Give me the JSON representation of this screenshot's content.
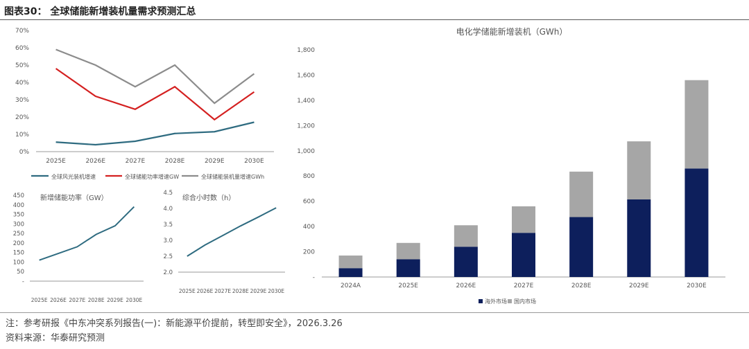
{
  "figure_title": "图表30：  全球储能新增装机量需求预测汇总",
  "note_text": "注：参考研报《中东冲突系列报告(一)：新能源平价提前，转型即安全》，2026.3.26",
  "source_text": "资料来源：华泰研究预测",
  "colors": {
    "wind_solar": "#2e6b80",
    "storage_gw": "#d42020",
    "storage_gwh": "#8c8c8c",
    "overseas": "#0d1f5c",
    "domestic": "#a6a6a6",
    "line_blue": "#2e6b80"
  },
  "chart_data": [
    {
      "type": "line",
      "title": "",
      "categories": [
        "2025E",
        "2026E",
        "2027E",
        "2028E",
        "2029E",
        "2030E"
      ],
      "y_ticks": [
        "70%",
        "60%",
        "50%",
        "40%",
        "30%",
        "20%",
        "10%",
        "0%"
      ],
      "ylim": [
        0,
        70
      ],
      "series": [
        {
          "name": "全球风光装机增速",
          "values": [
            5.5,
            4.0,
            6.0,
            10.5,
            11.5,
            17.0
          ]
        },
        {
          "name": "全球储能功率增速GW",
          "values": [
            48,
            32,
            24.5,
            37.5,
            18.5,
            34.5
          ]
        },
        {
          "name": "全球储能装机量增速GWh",
          "values": [
            59,
            50,
            37.5,
            50,
            28,
            45
          ]
        }
      ]
    },
    {
      "type": "line",
      "title": "新增储能功率（GW）",
      "categories": [
        "2025E",
        "2026E",
        "2027E",
        "2028E",
        "2029E",
        "2030E"
      ],
      "y_ticks": [
        "450",
        "400",
        "350",
        "300",
        "250",
        "200",
        "150",
        "100",
        "50",
        "-"
      ],
      "ylim": [
        0,
        450
      ],
      "series": [
        {
          "name": "新增储能功率（GW）",
          "values": [
            110,
            145,
            180,
            245,
            290,
            390
          ]
        }
      ]
    },
    {
      "type": "line",
      "title": "综合小时数（h）",
      "categories": [
        "2025E",
        "2026E",
        "2027E",
        "2028E",
        "2029E",
        "2030E"
      ],
      "y_ticks": [
        "4.5",
        "4.0",
        "3.5",
        "3.0",
        "2.5",
        "2.0"
      ],
      "ylim": [
        2.0,
        4.5
      ],
      "series": [
        {
          "name": "综合小时数（h）",
          "values": [
            2.5,
            2.85,
            3.15,
            3.45,
            3.73,
            4.02
          ]
        }
      ]
    },
    {
      "type": "bar",
      "stacked": true,
      "title": "电化学储能新增装机（GWh）",
      "categories": [
        "2024A",
        "2025E",
        "2026E",
        "2027E",
        "2028E",
        "2029E",
        "2030E"
      ],
      "y_ticks": [
        "1,800",
        "1,600",
        "1,400",
        "1,200",
        "1,000",
        "800",
        "600",
        "400",
        "200",
        "-"
      ],
      "ylim": [
        0,
        1800
      ],
      "series": [
        {
          "name": "海外市场",
          "values": [
            70,
            140,
            240,
            350,
            475,
            615,
            860
          ]
        },
        {
          "name": "国内市场",
          "values": [
            100,
            130,
            170,
            210,
            360,
            460,
            700
          ]
        }
      ]
    }
  ]
}
